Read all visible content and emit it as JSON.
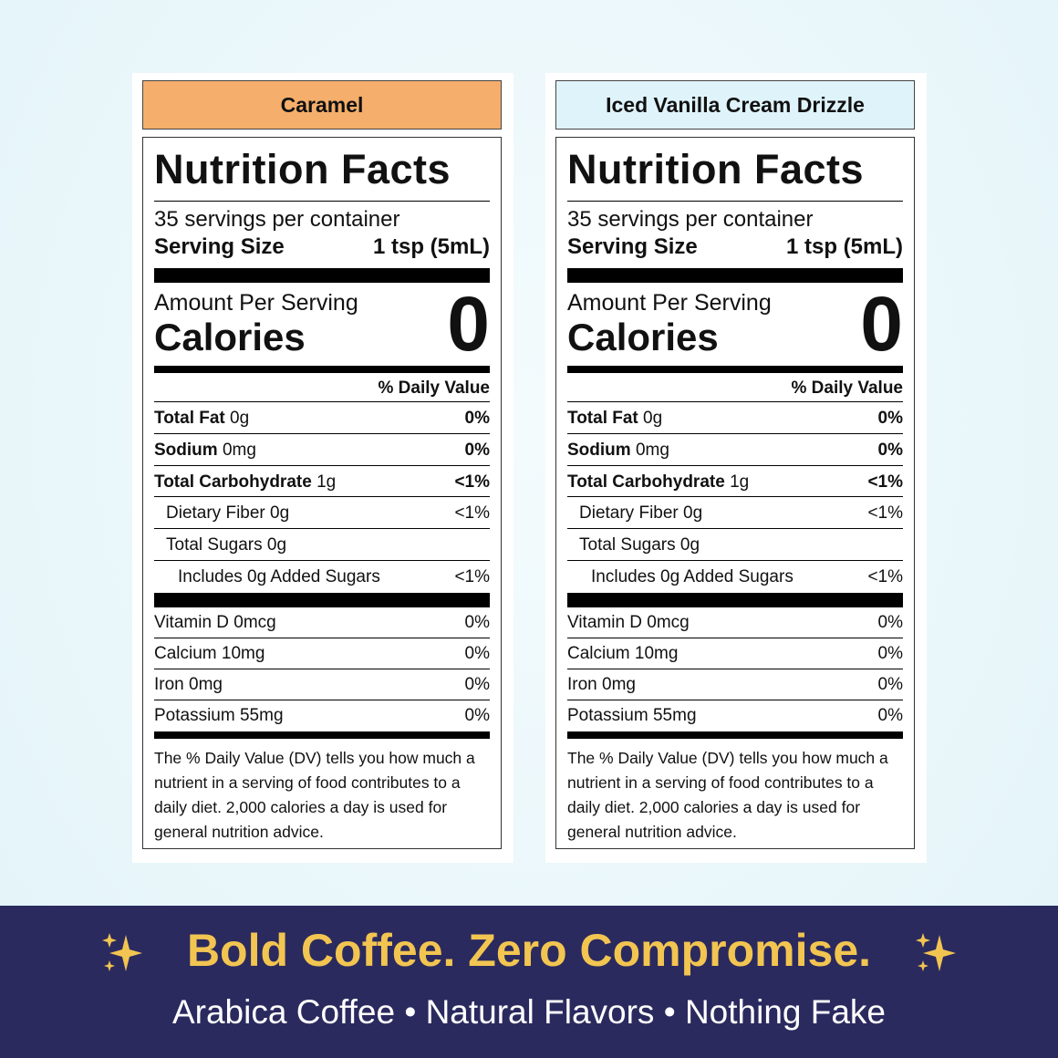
{
  "labels": [
    {
      "flavor": "Caramel",
      "header_color": "#f5ae6b",
      "title": "Nutrition Facts",
      "servings": "35 servings per container",
      "serving_size_label": "Serving Size",
      "serving_size": "1 tsp (5mL)",
      "amount_per_serving": "Amount Per Serving",
      "calories_label": "Calories",
      "calories": 0,
      "daily_value_header": "% Daily Value",
      "nutrients": [
        {
          "name": "Total Fat",
          "amount": "0g",
          "dv": "0%",
          "bold": true,
          "indent": 0
        },
        {
          "name": "Sodium",
          "amount": "0mg",
          "dv": "0%",
          "bold": true,
          "indent": 0
        },
        {
          "name": "Total Carbohydrate",
          "amount": "1g",
          "dv": "<1%",
          "bold": true,
          "indent": 0
        },
        {
          "name": "Dietary Fiber 0g",
          "dv": "<1%",
          "bold": false,
          "indent": 1
        },
        {
          "name": "Total Sugars 0g",
          "bold": false,
          "indent": 1
        },
        {
          "name": "Includes 0g Added Sugars",
          "dv": "<1%",
          "bold": false,
          "indent": 2
        }
      ],
      "vitamins": [
        {
          "name": "Vitamin D 0mcg",
          "dv": "0%"
        },
        {
          "name": "Calcium 10mg",
          "dv": "0%"
        },
        {
          "name": "Iron 0mg",
          "dv": "0%"
        },
        {
          "name": "Potassium 55mg",
          "dv": "0%"
        }
      ],
      "footnote": "The % Daily Value (DV) tells you how much a nutrient in a serving of food contributes to a daily diet. 2,000 calories a day is used for general nutrition advice."
    },
    {
      "flavor": "Iced Vanilla Cream Drizzle",
      "header_color": "#dff3fb",
      "title": "Nutrition Facts",
      "servings": "35 servings per container",
      "serving_size_label": "Serving Size",
      "serving_size": "1 tsp (5mL)",
      "amount_per_serving": "Amount Per Serving",
      "calories_label": "Calories",
      "calories": 0,
      "daily_value_header": "% Daily Value",
      "nutrients": [
        {
          "name": "Total Fat",
          "amount": "0g",
          "dv": "0%",
          "bold": true,
          "indent": 0
        },
        {
          "name": "Sodium",
          "amount": "0mg",
          "dv": "0%",
          "bold": true,
          "indent": 0
        },
        {
          "name": "Total Carbohydrate",
          "amount": "1g",
          "dv": "<1%",
          "bold": true,
          "indent": 0
        },
        {
          "name": "Dietary Fiber 0g",
          "dv": "<1%",
          "bold": false,
          "indent": 1
        },
        {
          "name": "Total Sugars 0g",
          "bold": false,
          "indent": 1
        },
        {
          "name": "Includes 0g Added Sugars",
          "dv": "<1%",
          "bold": false,
          "indent": 2
        }
      ],
      "vitamins": [
        {
          "name": "Vitamin D 0mcg",
          "dv": "0%"
        },
        {
          "name": "Calcium 10mg",
          "dv": "0%"
        },
        {
          "name": "Iron 0mg",
          "dv": "0%"
        },
        {
          "name": "Potassium 55mg",
          "dv": "0%"
        }
      ],
      "footnote": "The % Daily Value (DV) tells you how much a nutrient in a serving of food contributes to a daily diet. 2,000 calories a day is used for general nutrition advice."
    }
  ],
  "banner": {
    "headline": "Bold Coffee. Zero Compromise.",
    "tagline": "Arabica Coffee • Natural Flavors • Nothing Fake"
  }
}
